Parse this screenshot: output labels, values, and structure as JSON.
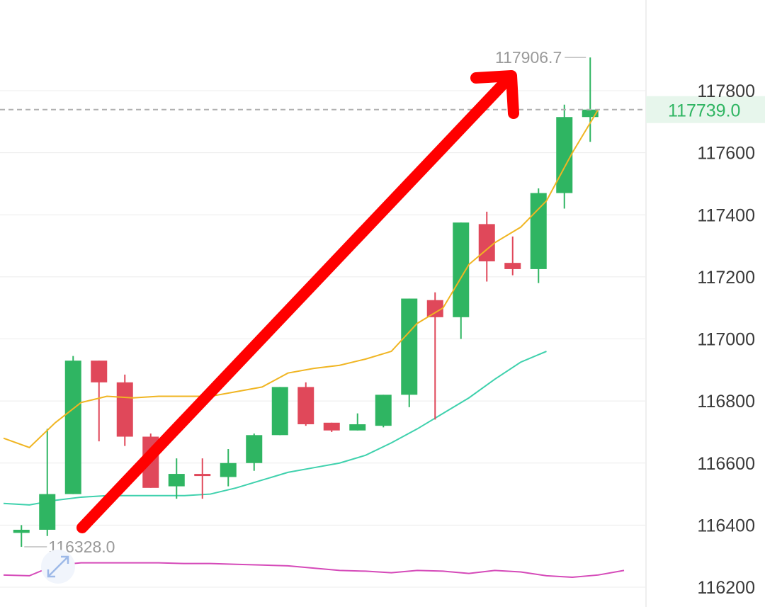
{
  "chart_data": {
    "type": "candlestick",
    "y_ticks": [
      117800,
      117600,
      117400,
      117200,
      117000,
      116800,
      116600,
      116400,
      116200
    ],
    "y_tick_labels": [
      "117800",
      "117600",
      "117400",
      "117200",
      "117000",
      "116800",
      "116600",
      "116400",
      "116200"
    ],
    "ylim": [
      116180,
      118000
    ],
    "grid": true,
    "current_price": 117739.0,
    "current_price_label": "117739.0",
    "high_label": "117906.7",
    "low_label": "116328.0",
    "candles": [
      {
        "open": 116375,
        "high": 116400,
        "low": 116330,
        "close": 116385
      },
      {
        "open": 116385,
        "high": 116710,
        "low": 116365,
        "close": 116500
      },
      {
        "open": 116500,
        "high": 116945,
        "low": 116500,
        "close": 116930
      },
      {
        "open": 116930,
        "high": 116930,
        "low": 116670,
        "close": 116860
      },
      {
        "open": 116860,
        "high": 116885,
        "low": 116655,
        "close": 116685
      },
      {
        "open": 116685,
        "high": 116695,
        "low": 116520,
        "close": 116520
      },
      {
        "open": 116525,
        "high": 116615,
        "low": 116485,
        "close": 116565
      },
      {
        "open": 116565,
        "high": 116615,
        "low": 116485,
        "close": 116560
      },
      {
        "open": 116555,
        "high": 116645,
        "low": 116525,
        "close": 116600
      },
      {
        "open": 116600,
        "high": 116695,
        "low": 116575,
        "close": 116690
      },
      {
        "open": 116690,
        "high": 116845,
        "low": 116690,
        "close": 116845
      },
      {
        "open": 116845,
        "high": 116860,
        "low": 116720,
        "close": 116725
      },
      {
        "open": 116730,
        "high": 116730,
        "low": 116700,
        "close": 116705
      },
      {
        "open": 116705,
        "high": 116760,
        "low": 116705,
        "close": 116725
      },
      {
        "open": 116720,
        "high": 116820,
        "low": 116715,
        "close": 116820
      },
      {
        "open": 116820,
        "high": 117130,
        "low": 116780,
        "close": 117130
      },
      {
        "open": 117125,
        "high": 117150,
        "low": 116740,
        "close": 117070
      },
      {
        "open": 117070,
        "high": 117375,
        "low": 117000,
        "close": 117375
      },
      {
        "open": 117370,
        "high": 117410,
        "low": 117185,
        "close": 117250
      },
      {
        "open": 117245,
        "high": 117330,
        "low": 117205,
        "close": 117225
      },
      {
        "open": 117225,
        "high": 117485,
        "low": 117180,
        "close": 117470
      },
      {
        "open": 117470,
        "high": 117755,
        "low": 117420,
        "close": 117715
      },
      {
        "open": 117715,
        "high": 117907,
        "low": 117635,
        "close": 117739
      }
    ],
    "ma_short": [
      116680,
      116650,
      116730,
      116795,
      116815,
      116810,
      116815,
      116815,
      116815,
      116830,
      116845,
      116890,
      116905,
      116915,
      116935,
      116960,
      117050,
      117100,
      117240,
      117310,
      117360,
      117445,
      117600,
      117739
    ],
    "ma_long": [
      116470,
      116465,
      116480,
      116490,
      116495,
      116495,
      116495,
      116495,
      116500,
      116520,
      116545,
      116570,
      116585,
      116600,
      116625,
      116665,
      116710,
      116760,
      116810,
      116870,
      116925,
      116960
    ],
    "indicator": [
      28,
      27,
      41,
      44,
      44,
      44,
      44,
      43,
      43,
      42,
      41,
      40,
      37,
      34,
      33,
      31,
      34,
      33,
      30,
      34,
      32,
      27,
      25,
      28,
      34
    ]
  },
  "colors": {
    "up": "#2fb562",
    "down": "#e0485a",
    "ma_short": "#f0b522",
    "ma_long": "#3fd1ad",
    "indicator": "#d54ab9",
    "arrow": "#ff0000",
    "grid": "#ececec",
    "current_line": "#b0b0b0",
    "current_text": "#2fb562",
    "current_bg": "#e7f6ec",
    "axis_text": "#3a3a3a",
    "extreme_text": "#9a9a9a",
    "icon": "#9db9e8"
  },
  "icons": {
    "expand": "expand-arrows-icon"
  }
}
